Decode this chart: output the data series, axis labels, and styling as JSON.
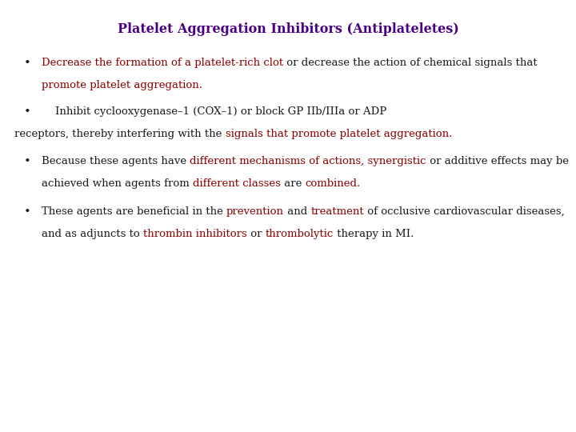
{
  "title": "Platelet Aggregation Inhibitors (Antiplateletes)",
  "title_color": "#4B0082",
  "title_fontsize": 11.5,
  "bg_color": "#FFFFFF",
  "dark_color": "#1a1a1a",
  "red_color": "#8B0000",
  "fontsize": 9.5,
  "font_family": "DejaVu Serif",
  "fig_w": 7.2,
  "fig_h": 5.4,
  "dpi": 100
}
